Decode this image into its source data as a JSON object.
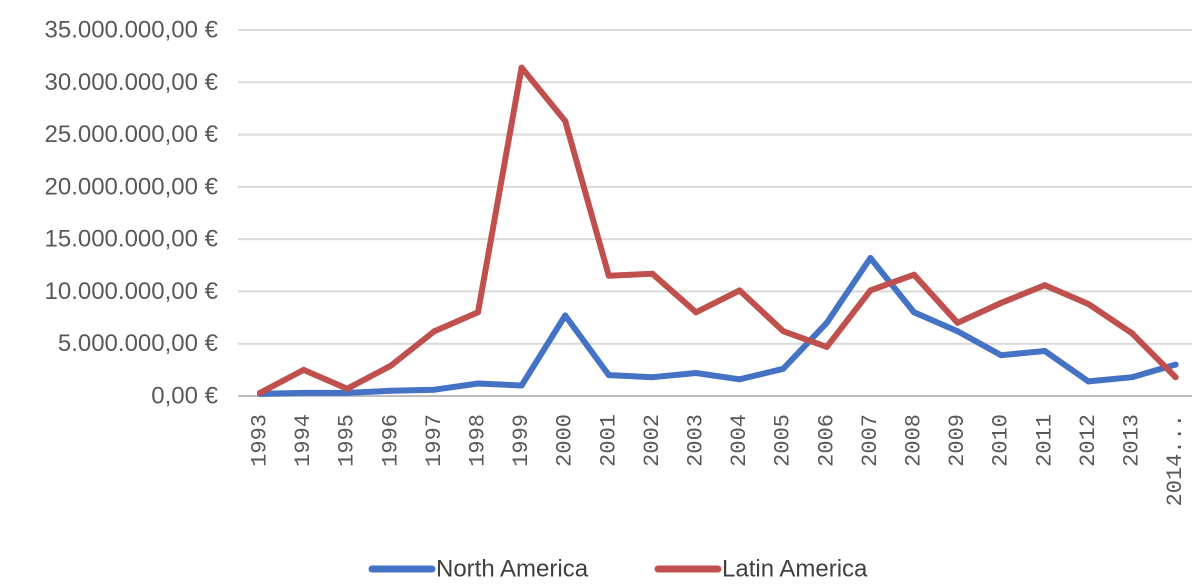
{
  "chart_data": {
    "type": "line",
    "title": "",
    "xlabel": "",
    "ylabel": "",
    "categories": [
      "1993",
      "1994",
      "1995",
      "1996",
      "1997",
      "1998",
      "1999",
      "2000",
      "2001",
      "2002",
      "2003",
      "2004",
      "2005",
      "2006",
      "2007",
      "2008",
      "2009",
      "2010",
      "2011",
      "2012",
      "2013",
      "2014..."
    ],
    "y_tick_labels": [
      "0,00 €",
      "5.000.000,00 €",
      "10.000.000,00 €",
      "15.000.000,00 €",
      "20.000.000,00 €",
      "25.000.000,00 €",
      "30.000.000,00 €",
      "35.000.000,00 €"
    ],
    "ylim": [
      0,
      35000000
    ],
    "y_tick_step": 5000000,
    "grid": true,
    "legend_position": "bottom",
    "series": [
      {
        "name": "North America",
        "color": "#4472C4",
        "values": [
          200000,
          300000,
          300000,
          500000,
          600000,
          1200000,
          1000000,
          7700000,
          2000000,
          1800000,
          2200000,
          1600000,
          2600000,
          7000000,
          13200000,
          8000000,
          6200000,
          3900000,
          4300000,
          1400000,
          1800000,
          3000000
        ]
      },
      {
        "name": "Latin America",
        "color": "#C0504D",
        "values": [
          300000,
          2500000,
          700000,
          2900000,
          6200000,
          8000000,
          31400000,
          26300000,
          11500000,
          11700000,
          8000000,
          10100000,
          6200000,
          4700000,
          10100000,
          11600000,
          7000000,
          8900000,
          10600000,
          8800000,
          6000000,
          1800000
        ]
      }
    ]
  }
}
